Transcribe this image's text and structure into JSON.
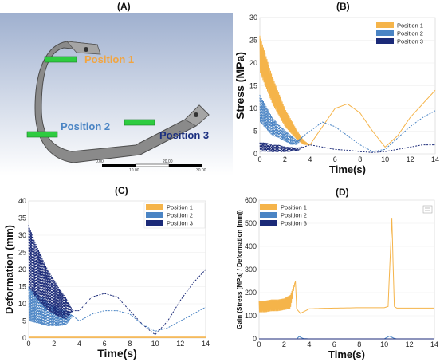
{
  "titles": {
    "a": "(A)",
    "b": "(B)",
    "c": "(C)",
    "d": "(D)"
  },
  "model_view": {
    "position_labels": [
      "Position 1",
      "Position 2",
      "Position 3"
    ],
    "position_colors": [
      "#f2a541",
      "#4a84c4",
      "#1a2f80"
    ],
    "scale_ticks": [
      "0.00",
      "10.00",
      "20.00",
      "30.00",
      "40.00"
    ]
  },
  "legend_labels": [
    "Position 1",
    "Position 2",
    "Position 3"
  ],
  "colors": {
    "p1": "#f5b44a",
    "p2": "#4a84c4",
    "p3": "#1b2a78"
  },
  "chart_data": [
    {
      "id": "B",
      "type": "line",
      "xlabel": "Time(s)",
      "ylabel": "Stress (MPa)",
      "xlim": [
        0,
        14
      ],
      "ylim": [
        0,
        30
      ],
      "xticks": [
        0,
        2,
        4,
        6,
        8,
        10,
        12,
        14
      ],
      "yticks": [
        0,
        5,
        10,
        15,
        20,
        25,
        30
      ],
      "series": [
        {
          "name": "Position 1",
          "x": [
            0,
            0.5,
            1,
            1.5,
            2,
            2.5,
            3,
            3.5,
            4,
            5,
            6,
            7,
            8,
            9,
            10,
            11,
            12,
            13,
            14
          ],
          "y": [
            22,
            18,
            14,
            11,
            8,
            6,
            4,
            2.5,
            2,
            6,
            10,
            11,
            9,
            5,
            1.5,
            4,
            8,
            11,
            14
          ],
          "osc": [
            4,
            3.5,
            3,
            2.5,
            2,
            1.5,
            1,
            0.5,
            0,
            0,
            0,
            0,
            0,
            0,
            0,
            0,
            0,
            0,
            0
          ]
        },
        {
          "name": "Position 2",
          "x": [
            0,
            0.5,
            1,
            1.5,
            2,
            2.5,
            3,
            3.5,
            4,
            5,
            6,
            7,
            8,
            9,
            10,
            11,
            12,
            13,
            14
          ],
          "y": [
            10,
            8,
            6,
            5,
            4,
            3,
            2.5,
            4,
            5,
            7,
            6,
            4,
            2,
            0.5,
            1,
            3.5,
            6,
            8,
            9.5
          ],
          "osc": [
            3,
            2.5,
            2,
            1.5,
            1.2,
            1,
            0.5,
            0,
            0,
            0,
            0,
            0,
            0,
            0,
            0,
            0,
            0,
            0,
            0
          ]
        },
        {
          "name": "Position 3",
          "x": [
            0,
            0.5,
            1,
            1.5,
            2,
            2.5,
            3,
            3.5,
            4,
            5,
            6,
            7,
            8,
            9,
            10,
            11,
            12,
            13,
            14
          ],
          "y": [
            1.5,
            1.5,
            1.2,
            1.2,
            1,
            1,
            1,
            1.5,
            2,
            1.5,
            1,
            0.8,
            0.5,
            0.3,
            0.5,
            1,
            1.5,
            2,
            2
          ],
          "osc": [
            1,
            1,
            0.8,
            0.8,
            0.6,
            0.5,
            0.4,
            0,
            0,
            0,
            0,
            0,
            0,
            0,
            0,
            0,
            0,
            0,
            0
          ]
        }
      ]
    },
    {
      "id": "C",
      "type": "line",
      "xlabel": "Time(s)",
      "ylabel": "Deformation (mm)",
      "xlim": [
        0,
        14
      ],
      "ylim": [
        0,
        40
      ],
      "xticks": [
        0,
        2,
        4,
        6,
        8,
        10,
        12,
        14
      ],
      "yticks": [
        0,
        5,
        10,
        15,
        20,
        25,
        30,
        35,
        40
      ],
      "series": [
        {
          "name": "Position 1",
          "x": [
            0,
            14
          ],
          "y": [
            0.2,
            0.2
          ],
          "osc": [
            0,
            0
          ]
        },
        {
          "name": "Position 2",
          "x": [
            0,
            0.5,
            1,
            1.5,
            2,
            2.5,
            3,
            3.5,
            4,
            5,
            6,
            7,
            8,
            9,
            10,
            11,
            12,
            13,
            14
          ],
          "y": [
            10,
            9,
            8,
            7,
            6.5,
            6,
            6,
            6.5,
            5,
            7,
            8,
            8,
            7,
            4,
            2,
            3,
            5,
            7,
            9
          ],
          "osc": [
            5,
            4.5,
            4,
            3.5,
            3,
            2.5,
            2,
            0,
            0,
            0,
            0,
            0,
            0,
            0,
            0,
            0,
            0,
            0,
            0
          ]
        },
        {
          "name": "Position 3",
          "x": [
            0,
            0.5,
            1,
            1.5,
            2,
            2.5,
            3,
            3.5,
            4,
            5,
            6,
            7,
            8,
            9,
            10,
            11,
            12,
            13,
            14
          ],
          "y": [
            24,
            20,
            17,
            14,
            12,
            10,
            8.5,
            8,
            8,
            12,
            13,
            12,
            8,
            4,
            1,
            5,
            11,
            16,
            20
          ],
          "osc": [
            9,
            8,
            7,
            6,
            5,
            4,
            3,
            0,
            0,
            0,
            0,
            0,
            0,
            0,
            0,
            0,
            0,
            0,
            0
          ]
        }
      ]
    },
    {
      "id": "D",
      "type": "line",
      "xlabel": "Time(s)",
      "ylabel": "Gain (Stress [MPa] / Deformation [mm])",
      "xlim": [
        0,
        14
      ],
      "ylim": [
        0,
        600
      ],
      "xticks": [
        0,
        2,
        4,
        6,
        8,
        10,
        12,
        14
      ],
      "yticks": [
        0,
        100,
        200,
        300,
        400,
        500,
        600
      ],
      "series": [
        {
          "name": "Position 1",
          "x": [
            0,
            0.5,
            1,
            1.5,
            2,
            2.5,
            2.9,
            3.0,
            3.3,
            4,
            5,
            6,
            7,
            8,
            9,
            10,
            10.3,
            10.6,
            10.8,
            11,
            12,
            13,
            14
          ],
          "y": [
            140,
            140,
            145,
            145,
            150,
            160,
            250,
            130,
            110,
            130,
            132,
            133,
            134,
            135,
            135,
            135,
            140,
            520,
            140,
            133,
            133,
            133,
            133
          ],
          "osc": [
            25,
            25,
            25,
            25,
            25,
            30,
            0,
            0,
            0,
            0,
            0,
            0,
            0,
            0,
            0,
            0,
            0,
            0,
            0,
            0,
            0,
            0,
            0
          ]
        },
        {
          "name": "Position 2",
          "x": [
            0,
            3,
            3.2,
            3.5,
            4,
            10,
            10.4,
            10.8,
            11,
            14
          ],
          "y": [
            0,
            0,
            10,
            2,
            0,
            0,
            12,
            2,
            0,
            0
          ],
          "osc": [
            0,
            0,
            0,
            0,
            0,
            0,
            0,
            0,
            0,
            0
          ]
        },
        {
          "name": "Position 3",
          "x": [
            0,
            14
          ],
          "y": [
            0,
            0
          ],
          "osc": [
            0,
            0
          ]
        }
      ]
    }
  ]
}
